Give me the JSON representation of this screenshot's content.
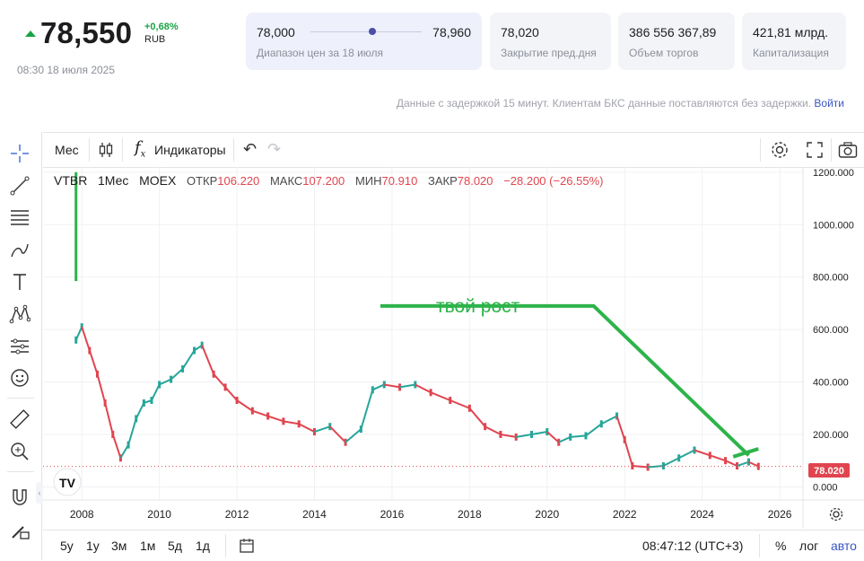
{
  "quote": {
    "price": "78,550",
    "change": "+0,68%",
    "currency": "RUB",
    "timestamp": "08:30 18 июля 2025",
    "colors": {
      "up": "#1aa346",
      "down": "#e0454f",
      "accent": "#4a4fa8"
    }
  },
  "range": {
    "low": "78,000",
    "high": "78,960",
    "label": "Диапазон цен за 18 июля",
    "position": 0.52
  },
  "stats": [
    {
      "value": "78,020",
      "label": "Закрытие пред.дня"
    },
    {
      "value": "386 556 367,89",
      "label": "Объем торгов"
    },
    {
      "value": "421,81 млрд.",
      "label": "Капитализация"
    }
  ],
  "notice": {
    "text": "Данные с задержкой 15 минут. Клиентам БКС данные поставляются без задержки.",
    "link": "Войти"
  },
  "toolbar": {
    "interval": "Мес",
    "indicators": "Индикаторы"
  },
  "left_tools": [
    "crosshair-icon",
    "trend-line-icon",
    "fib-lines-icon",
    "brush-icon",
    "text-icon",
    "pattern-icon",
    "forecast-icon",
    "emoji-icon",
    "ruler-icon",
    "zoom-icon",
    "magnet-icon",
    "lock-pencil-icon"
  ],
  "legend": {
    "symbol": "VTBR",
    "interval": "1Мес",
    "exchange": "MOEX",
    "open_label": "ОТКР",
    "open": "106.220",
    "high_label": "МАКС",
    "high": "107.200",
    "low_label": "МИН",
    "low": "70.910",
    "close_label": "ЗАКР",
    "close": "78.020",
    "change": "−28.200 (−26.55%)"
  },
  "annotation": "твой рост",
  "bottom": {
    "ranges": [
      "5у",
      "1у",
      "3м",
      "1м",
      "5д",
      "1д"
    ],
    "time": "08:47:12 (UTC+3)",
    "percent": "%",
    "log": "лог",
    "auto": "авто"
  },
  "chart_data": {
    "type": "candlestick-line",
    "y_ticks": [
      "1200.000",
      "1000.000",
      "800.000",
      "600.000",
      "400.000",
      "200.000",
      "0.000"
    ],
    "x_ticks": [
      "2008",
      "2010",
      "2012",
      "2014",
      "2016",
      "2018",
      "2020",
      "2022",
      "2024",
      "2026"
    ],
    "last_price_label": "78.020",
    "ylim": [
      -50,
      1220
    ],
    "xlim": [
      2007.0,
      2026.6
    ],
    "series": [
      {
        "x": [
          2007.85,
          2008.0,
          2008.2,
          2008.4,
          2008.6,
          2008.8,
          2009.0,
          2009.2,
          2009.4,
          2009.6,
          2009.8,
          2010.0,
          2010.3,
          2010.6,
          2010.9,
          2011.1,
          2011.4,
          2011.7,
          2012.0,
          2012.4,
          2012.8,
          2013.2,
          2013.6,
          2014.0,
          2014.4,
          2014.8,
          2015.2,
          2015.5,
          2015.8,
          2016.2,
          2016.6,
          2017.0,
          2017.5,
          2018.0,
          2018.4,
          2018.8,
          2019.2,
          2019.6,
          2020.0,
          2020.3,
          2020.6,
          2021.0,
          2021.4,
          2021.8,
          2022.0,
          2022.2,
          2022.6,
          2023.0,
          2023.4,
          2023.8,
          2024.2,
          2024.6,
          2024.9,
          2025.2,
          2025.45
        ],
        "y": [
          560,
          610,
          520,
          430,
          320,
          200,
          110,
          160,
          260,
          320,
          330,
          390,
          410,
          450,
          520,
          540,
          430,
          380,
          330,
          290,
          270,
          250,
          240,
          210,
          230,
          170,
          220,
          370,
          390,
          380,
          390,
          360,
          330,
          300,
          230,
          200,
          190,
          200,
          210,
          170,
          190,
          195,
          240,
          270,
          180,
          80,
          75,
          80,
          110,
          140,
          120,
          100,
          80,
          95,
          78
        ]
      }
    ],
    "trend_line": {
      "x": [
        2015.7,
        2021.2,
        2025.2
      ],
      "y": [
        690,
        690,
        120
      ]
    },
    "trend_arrow": {
      "x": [
        2024.8,
        2025.45
      ],
      "y": [
        115,
        145
      ]
    },
    "vertical_bar": {
      "x": 2007.85,
      "y": [
        785,
        1200
      ]
    }
  }
}
